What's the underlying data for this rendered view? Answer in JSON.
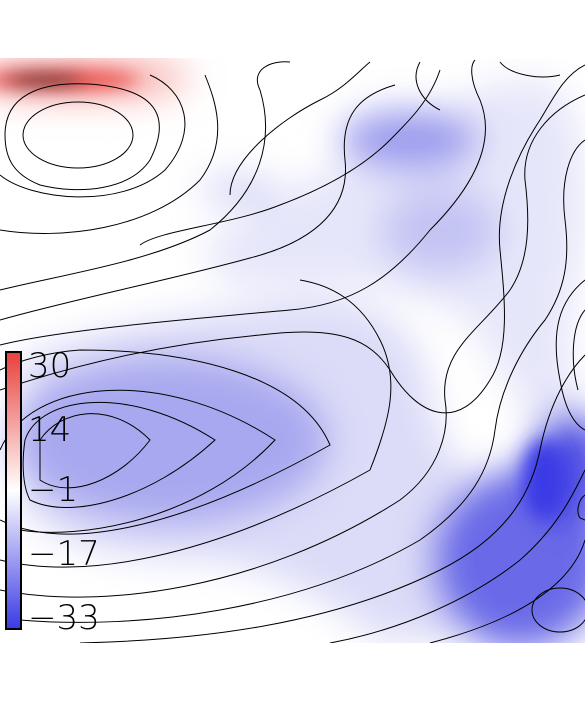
{
  "chart_data": {
    "type": "heatmap",
    "title": "",
    "xlabel": "",
    "ylabel": "",
    "grid": false,
    "legend": "colorbar, left",
    "colorbar": {
      "ticks": [
        30,
        14,
        -1,
        -17,
        -33
      ],
      "tick_labels": [
        "30",
        "14",
        "−1",
        "−17",
        "−33"
      ],
      "range": [
        -33,
        30
      ],
      "colors": {
        "max": "#e8403c",
        "mid": "#ffffff",
        "min": "#3a3ae6"
      }
    },
    "contours": {
      "color": "#000000",
      "style": "thin black isolines"
    },
    "field_features": [
      {
        "kind": "positive-peak",
        "value": 30,
        "location": "top-left edge"
      },
      {
        "kind": "negative-trough",
        "value": -33,
        "location": "right-center"
      },
      {
        "kind": "negative-region",
        "value": -20,
        "location": "left-center"
      },
      {
        "kind": "negative-region",
        "value": -15,
        "location": "top-right"
      }
    ]
  }
}
